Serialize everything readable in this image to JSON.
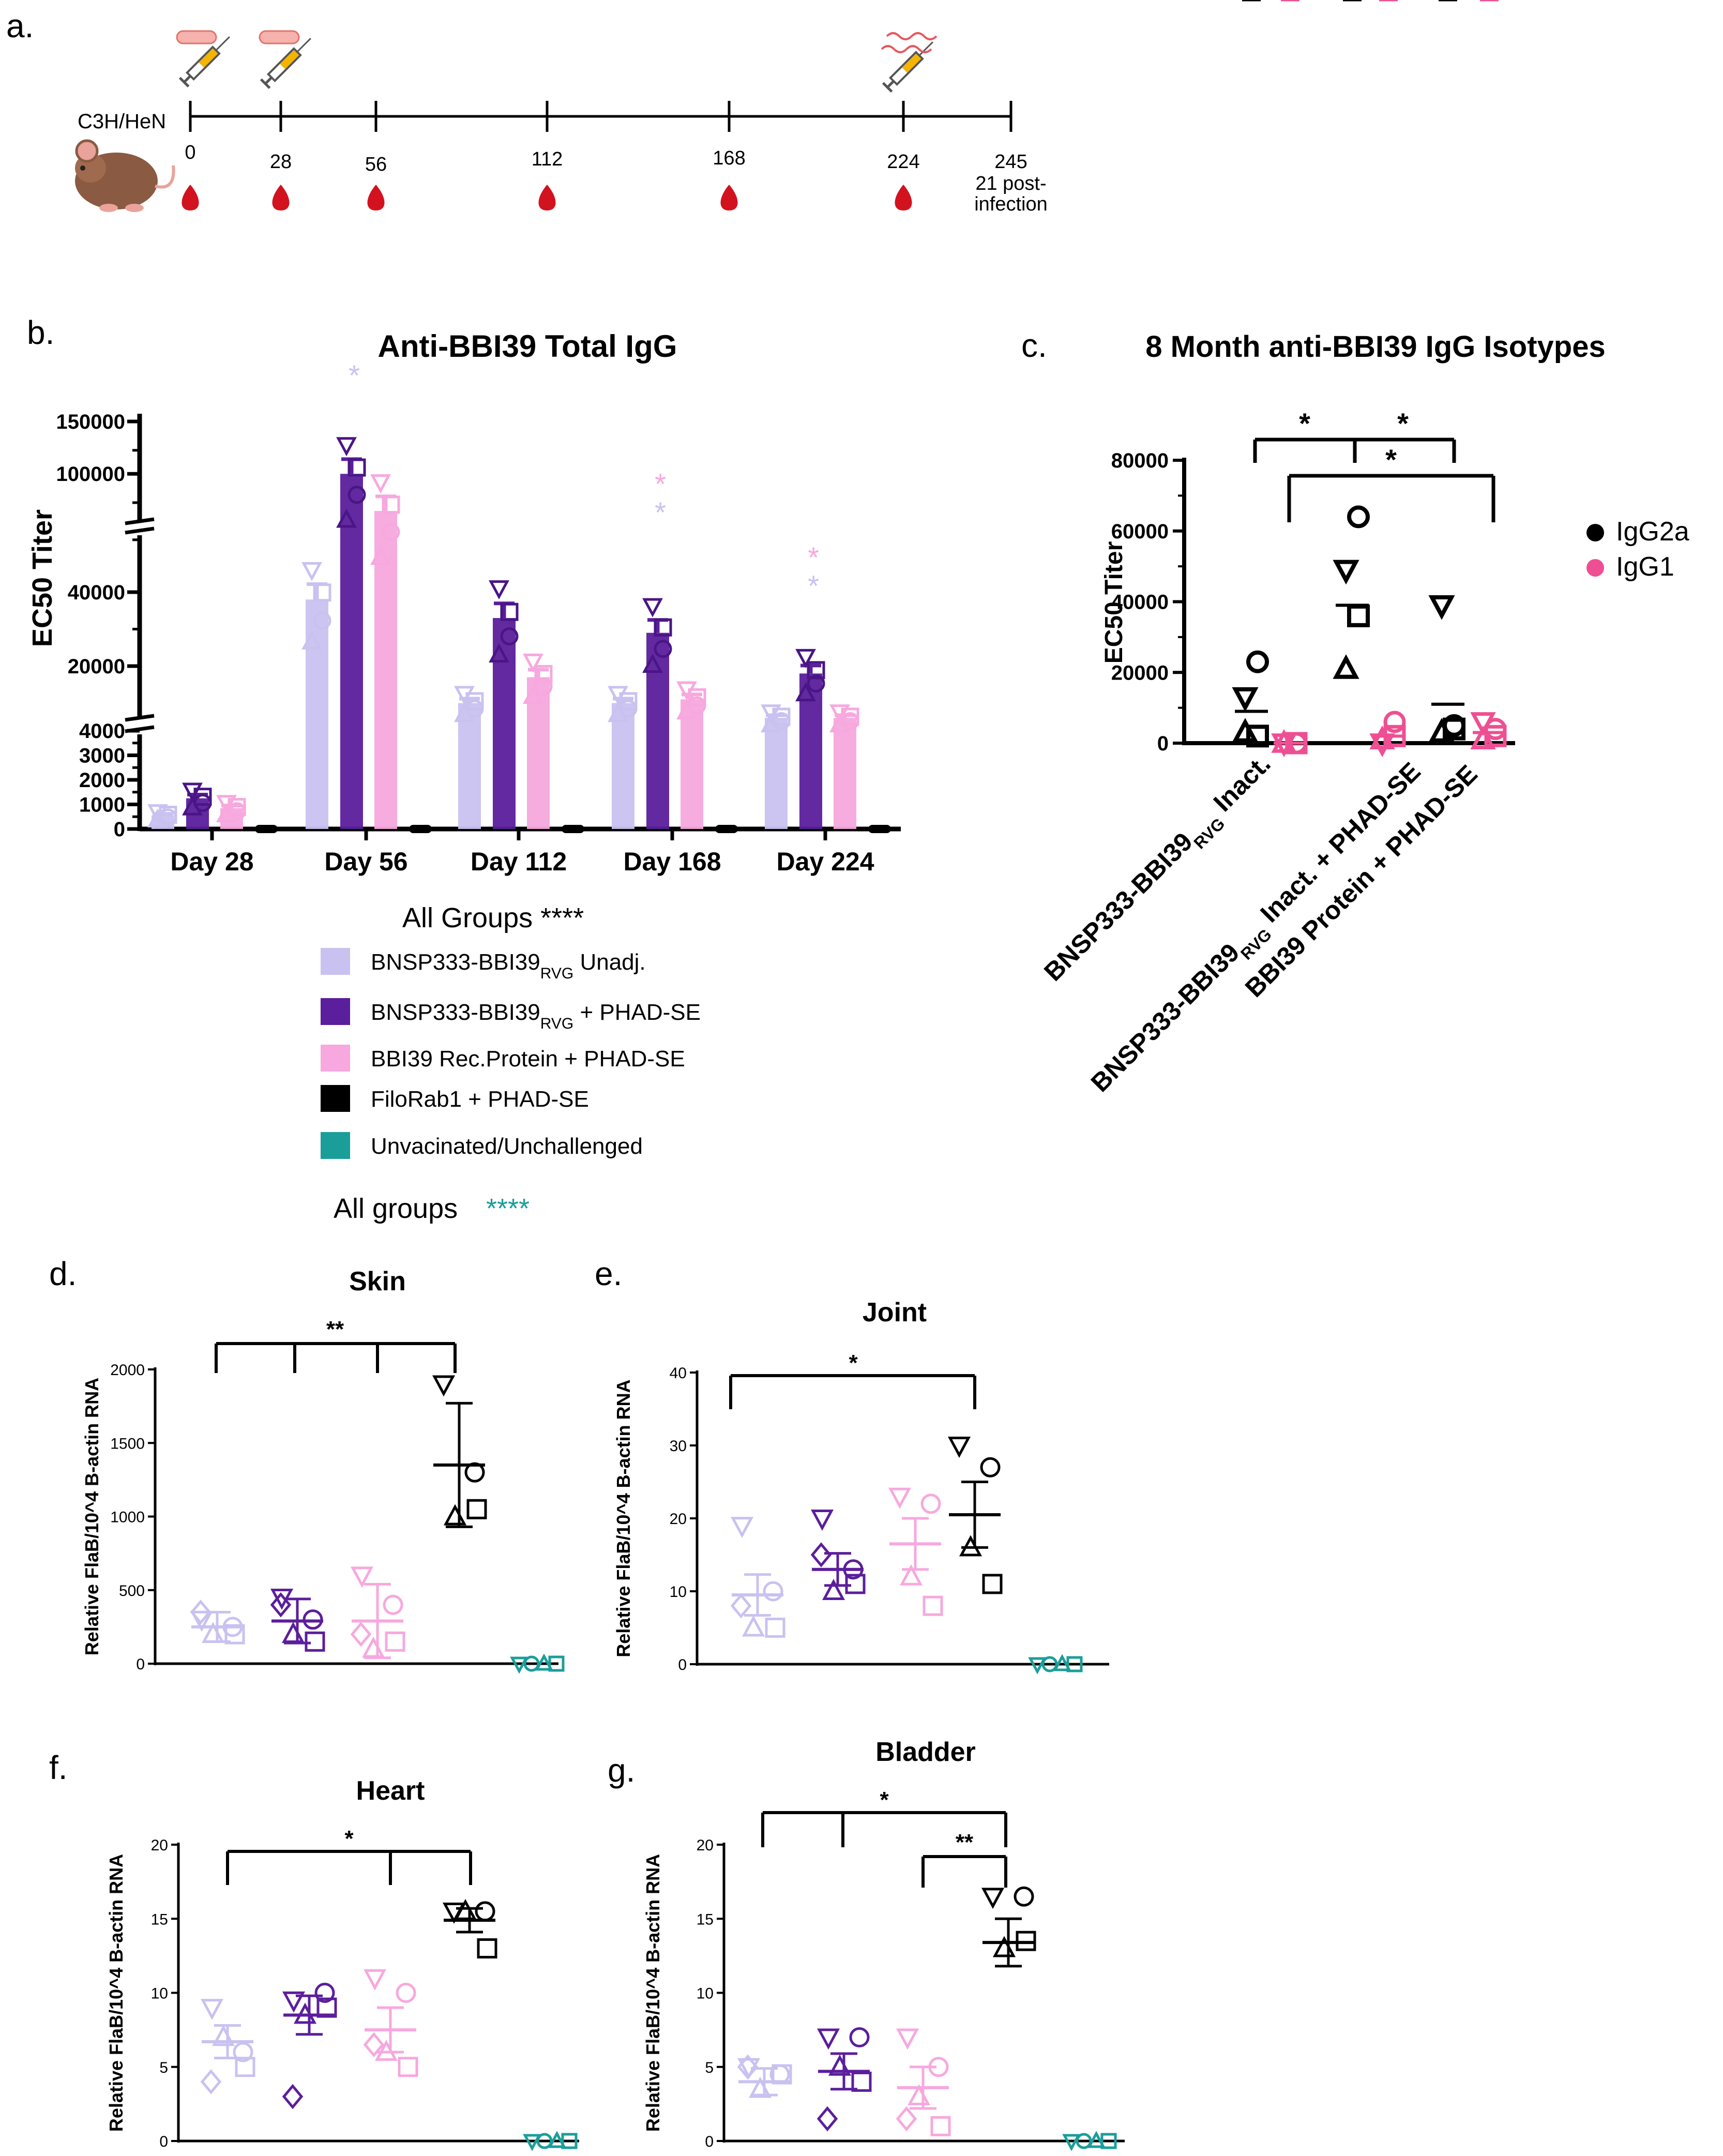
{
  "panel_labels": {
    "a": "a.",
    "b": "b.",
    "c": "c.",
    "d": "d.",
    "e": "e.",
    "f": "f.",
    "g": "g."
  },
  "colors": {
    "unadj": "#c9c2f0",
    "rvg_phad": "#5b1e9c",
    "protein": "#f7a8de",
    "filorab": "#000000",
    "unvac": "#1a9e9a",
    "igg2a": "#000000",
    "igg1": "#ee4f93",
    "blood": "#d3121f"
  },
  "timeline": {
    "strain": "C3H/HeN",
    "ticks": [
      "0",
      "28",
      "56",
      "112",
      "168",
      "224",
      "245"
    ],
    "end_note": [
      "21 post-",
      "infection"
    ],
    "blood_draw_ticks": [
      "0",
      "28",
      "56",
      "112",
      "168",
      "224"
    ],
    "vaccination_ticks": [
      "0",
      "28"
    ],
    "challenge_tick": "224",
    "icons": [
      "mouse-icon",
      "syringe-icon",
      "blood-drop-icon",
      "tick-icon"
    ]
  },
  "legend_b": {
    "items": [
      {
        "text": "BNSP333-BBI39",
        "sub": "RVG",
        "suffix": " Unadj.",
        "color": "#c9c2f0"
      },
      {
        "text": "BNSP333-BBI39",
        "sub": "RVG",
        "suffix": " + PHAD-SE",
        "color": "#5b1e9c"
      },
      {
        "text": "BBI39 Rec.Protein + PHAD-SE",
        "sub": "",
        "suffix": "",
        "color": "#f7a8de"
      },
      {
        "text": "FiloRab1 + PHAD-SE",
        "sub": "",
        "suffix": "",
        "color": "#000000"
      },
      {
        "text": "Unvacinated/Unchallenged",
        "sub": "",
        "suffix": "",
        "color": "#1a9e9a"
      }
    ],
    "all_groups_label": "All Groups ****",
    "all_groups_label2": "All groups",
    "all_groups_stars2": "****"
  },
  "chart_data": [
    {
      "id": "b",
      "type": "bar",
      "title": "Anti-BBI39 Total IgG",
      "xlabel": "",
      "ylabel": "EC50 Titer",
      "categories": [
        "Day 28",
        "Day 56",
        "Day 112",
        "Day 168",
        "Day 224"
      ],
      "y_axis_break": true,
      "y_ticks": [
        "0",
        "1000",
        "2000",
        "3000",
        "4000",
        "20000",
        "40000",
        "100000",
        "150000"
      ],
      "series": [
        {
          "name": "BNSP333-BBI39RVG Unadj.",
          "values": [
            550,
            38000,
            10000,
            10000,
            6000
          ]
        },
        {
          "name": "BNSP333-BBI39RVG + PHAD-SE",
          "values": [
            1250,
            100000,
            33000,
            29000,
            18000
          ]
        },
        {
          "name": "BBI39 Rec.Protein + PHAD-SE",
          "values": [
            850,
            75000,
            17000,
            11000,
            6000
          ]
        },
        {
          "name": "FiloRab1 + PHAD-SE",
          "values": [
            0,
            0,
            0,
            0,
            0
          ]
        }
      ],
      "significance": [
        {
          "category": "Day 56",
          "stars": [
            "*"
          ],
          "colors": [
            "#c9c2f0"
          ]
        },
        {
          "category": "Day 168",
          "stars": [
            "*",
            "*"
          ],
          "colors": [
            "#f7a8de",
            "#c9c2f0"
          ]
        },
        {
          "category": "Day 224",
          "stars": [
            "*",
            "*"
          ],
          "colors": [
            "#f7a8de",
            "#c9c2f0"
          ]
        }
      ]
    },
    {
      "id": "c",
      "type": "scatter",
      "title": "8 Month anti-BBI39 IgG Isotypes",
      "ylabel": "EC50 Titer",
      "ylim": [
        0,
        80000
      ],
      "y_ticks": [
        "0",
        "20000",
        "40000",
        "60000",
        "80000"
      ],
      "categories": [
        {
          "main": "BNSP333-BBI39",
          "sub": "RVG",
          "rest": " Inact."
        },
        {
          "main": "BNSP333-BBI39",
          "sub": "RVG",
          "rest": " Inact. + PHAD-SE"
        },
        {
          "main": "BBI39 Protein + PHAD-SE",
          "sub": "",
          "rest": ""
        }
      ],
      "legend": [
        "IgG2a",
        "IgG1"
      ],
      "series": [
        {
          "name": "IgG2a",
          "mean": [
            9000,
            39000,
            11000
          ],
          "sem": [
            5000,
            6000,
            7000
          ],
          "points": [
            [
              13000,
              23000,
              3000,
              2000
            ],
            [
              49000,
              64000,
              21000,
              36000
            ],
            [
              39000,
              5000,
              3000,
              4000
            ]
          ]
        },
        {
          "name": "IgG1",
          "mean": [
            0,
            2000,
            3000
          ],
          "sem": [
            0,
            1500,
            1500
          ],
          "points": [
            [
              0,
              0,
              0,
              0
            ],
            [
              0,
              6000,
              1000,
              2000
            ],
            [
              6000,
              4000,
              1000,
              2000
            ]
          ]
        }
      ],
      "significance": [
        "*",
        "*",
        "*"
      ]
    },
    {
      "id": "d",
      "type": "scatter",
      "title": "Skin",
      "ylabel": "Relative FlaB/10^4 B-actin RNA",
      "ylim": [
        0,
        2000
      ],
      "y_ticks": [
        "0",
        "500",
        "1000",
        "1500",
        "2000"
      ],
      "groups": [
        {
          "mean": 250,
          "sem": 100,
          "points": [
            300,
            250,
            200,
            200,
            350
          ],
          "color": "#c9c2f0"
        },
        {
          "mean": 290,
          "sem": 150,
          "points": [
            450,
            300,
            200,
            150,
            400
          ],
          "color": "#5b1e9c"
        },
        {
          "mean": 290,
          "sem": 250,
          "points": [
            600,
            400,
            100,
            150,
            200
          ],
          "color": "#f7a8de"
        },
        {
          "mean": 1350,
          "sem": 420,
          "points": [
            1900,
            1300,
            1000,
            1050
          ],
          "color": "#000000"
        },
        {
          "mean": 0,
          "sem": 0,
          "points": [
            0,
            0,
            0,
            0
          ],
          "color": "#1a9e9a"
        }
      ],
      "significance": [
        "**"
      ]
    },
    {
      "id": "e",
      "type": "scatter",
      "title": "Joint",
      "ylabel": "Relative FlaB/10^4 B-actin RNA",
      "ylim": [
        0,
        40
      ],
      "y_ticks": [
        "0",
        "10",
        "20",
        "30",
        "40"
      ],
      "groups": [
        {
          "mean": 9.5,
          "sem": 2.8,
          "points": [
            19,
            10,
            5,
            5,
            8
          ],
          "color": "#c9c2f0"
        },
        {
          "mean": 13,
          "sem": 2.2,
          "points": [
            20,
            13,
            10,
            11,
            15
          ],
          "color": "#5b1e9c"
        },
        {
          "mean": 16.5,
          "sem": 3.5,
          "points": [
            23,
            22,
            12,
            8
          ],
          "color": "#f7a8de"
        },
        {
          "mean": 20.5,
          "sem": 4.5,
          "points": [
            30,
            27,
            16,
            11
          ],
          "color": "#000000"
        },
        {
          "mean": 1,
          "sem": 0,
          "points": [
            1,
            1,
            1,
            1
          ],
          "color": "#1a9e9a"
        }
      ],
      "significance": [
        "*"
      ]
    },
    {
      "id": "f",
      "type": "scatter",
      "title": "Heart",
      "ylabel": "Relative FlaB/10^4 B-actin RNA",
      "ylim": [
        0,
        20
      ],
      "y_ticks": [
        "0",
        "5",
        "10",
        "15",
        "20"
      ],
      "groups": [
        {
          "mean": 6.7,
          "sem": 1.1,
          "points": [
            9,
            6,
            7,
            5,
            4
          ],
          "color": "#c9c2f0"
        },
        {
          "mean": 8.5,
          "sem": 1.3,
          "points": [
            9.5,
            10,
            8.5,
            9,
            3
          ],
          "color": "#5b1e9c"
        },
        {
          "mean": 7.5,
          "sem": 1.5,
          "points": [
            11,
            10,
            6,
            5,
            6.5
          ],
          "color": "#f7a8de"
        },
        {
          "mean": 14.9,
          "sem": 0.8,
          "points": [
            15.5,
            15.5,
            15.5,
            13
          ],
          "color": "#000000"
        },
        {
          "mean": 0,
          "sem": 0,
          "points": [
            0,
            0,
            0,
            0
          ],
          "color": "#1a9e9a"
        }
      ],
      "significance": [
        "*"
      ]
    },
    {
      "id": "g",
      "type": "scatter",
      "title": "Bladder",
      "ylabel": "Relative FlaB/10^4 B-actin RNA",
      "ylim": [
        0,
        20
      ],
      "y_ticks": [
        "0",
        "5",
        "10",
        "15",
        "20"
      ],
      "groups": [
        {
          "mean": 4,
          "sem": 0.9,
          "points": [
            5,
            4.5,
            3.5,
            4.5,
            5
          ],
          "color": "#c9c2f0"
        },
        {
          "mean": 4.7,
          "sem": 1.2,
          "points": [
            7,
            7,
            5,
            4,
            1.5
          ],
          "color": "#5b1e9c"
        },
        {
          "mean": 3.6,
          "sem": 1.4,
          "points": [
            7,
            5,
            3,
            1,
            1.5
          ],
          "color": "#f7a8de"
        },
        {
          "mean": 13.4,
          "sem": 1.6,
          "points": [
            16.5,
            16.5,
            13,
            13.5
          ],
          "color": "#000000"
        },
        {
          "mean": 0,
          "sem": 0,
          "points": [
            0,
            0,
            0,
            0
          ],
          "color": "#1a9e9a"
        }
      ],
      "significance": [
        "*",
        "**"
      ]
    }
  ]
}
